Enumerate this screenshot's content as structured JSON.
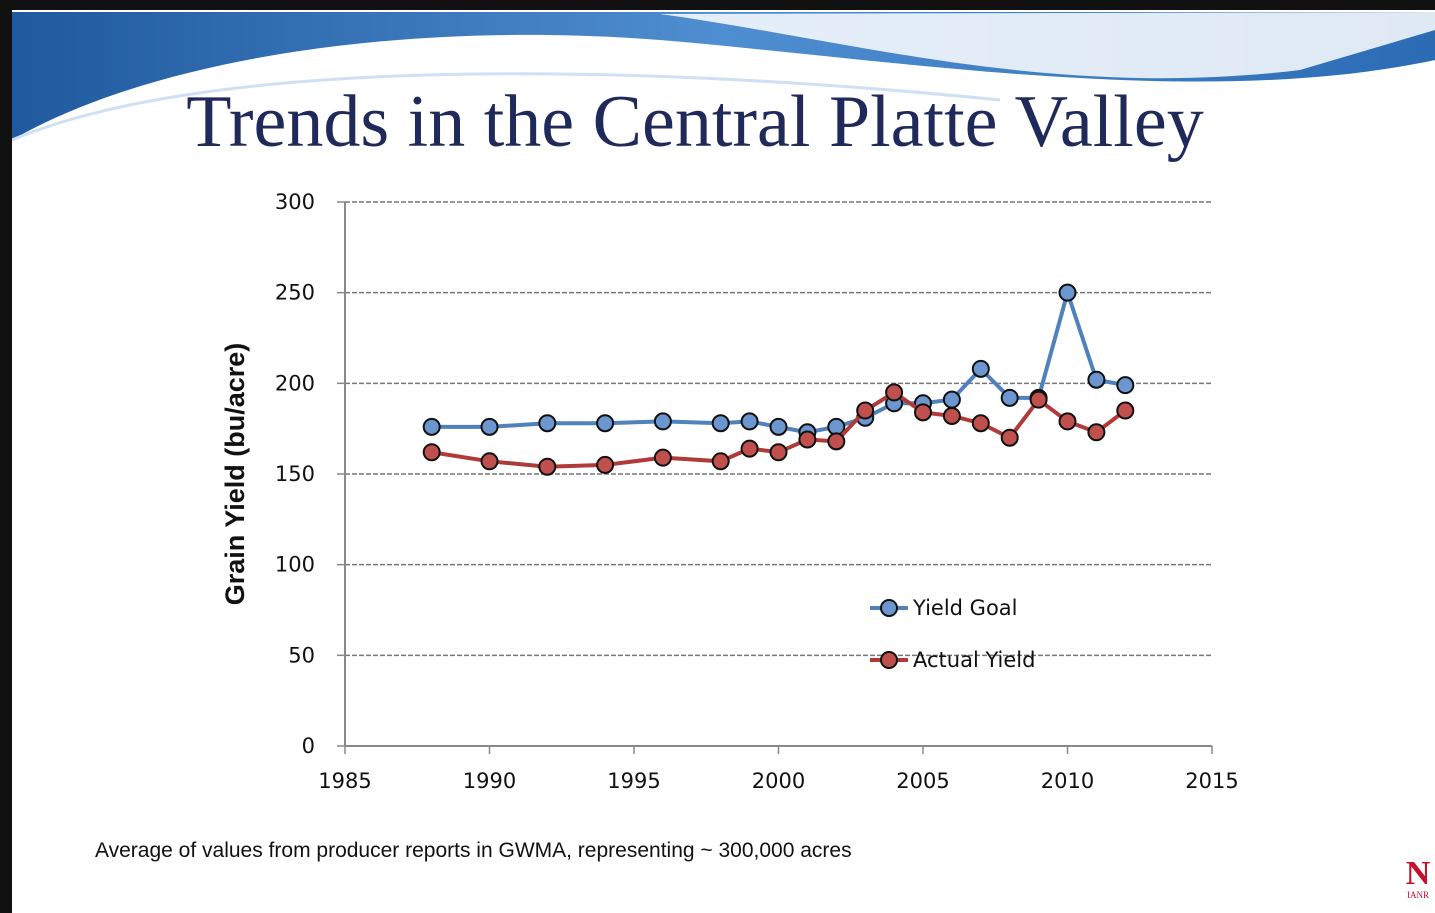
{
  "title": "Trends in the Central Platte Valley",
  "chart_data": {
    "type": "line",
    "y_label": "Grain Yield (bu/acre)",
    "x": [
      1988,
      1990,
      1992,
      1994,
      1996,
      1998,
      1999,
      2000,
      2001,
      2002,
      2003,
      2004,
      2005,
      2006,
      2007,
      2008,
      2009,
      2010,
      2011,
      2012
    ],
    "series": [
      {
        "name": "Yield Goal",
        "color": "#4f81bd",
        "marker_color": "#6b96cf",
        "values": [
          176,
          176,
          178,
          178,
          179,
          178,
          179,
          176,
          173,
          176,
          181,
          189,
          189,
          191,
          208,
          192,
          192,
          250,
          202,
          199
        ]
      },
      {
        "name": "Actual Yield",
        "color": "#b03a38",
        "marker_color": "#c0504d",
        "values": [
          162,
          157,
          154,
          155,
          159,
          157,
          164,
          162,
          169,
          168,
          185,
          195,
          184,
          182,
          178,
          170,
          191,
          179,
          173,
          185
        ]
      }
    ],
    "xlim": [
      1985,
      2015
    ],
    "xticks": [
      1985,
      1990,
      1995,
      2000,
      2005,
      2010,
      2015
    ],
    "ylim": [
      0,
      300
    ],
    "yticks": [
      0,
      50,
      100,
      150,
      200,
      250,
      300
    ],
    "grid": true
  },
  "footnote": "Average of values from producer reports in GWMA, representing ~ 300,000 acres",
  "logo": {
    "mark": "N",
    "text": "IANR"
  }
}
